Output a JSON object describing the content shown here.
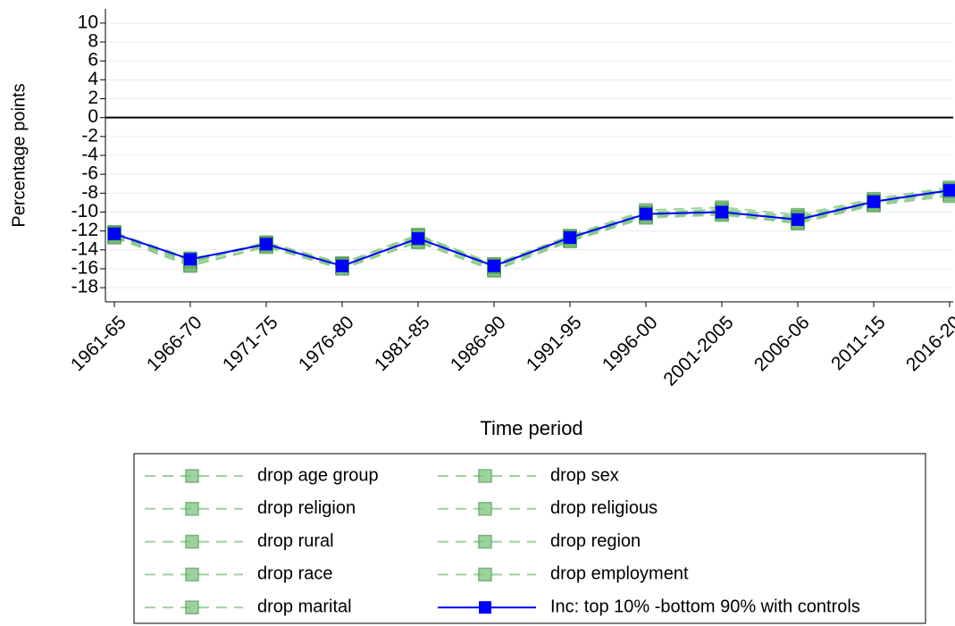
{
  "chart_data": {
    "type": "line",
    "ylabel": "Percentage points",
    "xlabel": "Time period",
    "categories": [
      "1961-65",
      "1966-70",
      "1971-75",
      "1976-80",
      "1981-85",
      "1986-90",
      "1991-95",
      "1996-00",
      "2001-2005",
      "2006-06",
      "2011-15",
      "2016-20"
    ],
    "ylim": [
      -19.5,
      11.5
    ],
    "yticks": [
      10,
      8,
      6,
      4,
      2,
      0,
      -2,
      -4,
      -6,
      -8,
      -10,
      -12,
      -14,
      -16,
      -18
    ],
    "grid": true,
    "hline": 0,
    "series": [
      {
        "name": "drop age group",
        "color": "#7cc47c",
        "line_style": "dashed",
        "values": [
          -12.5,
          -15.3,
          -13.3,
          -15.5,
          -12.9,
          -15.9,
          -12.9,
          -10.4,
          -10.1,
          -11.0,
          -9.1,
          -7.9
        ]
      },
      {
        "name": "drop sex",
        "color": "#7cc47c",
        "line_style": "dashed",
        "values": [
          -12.2,
          -15.0,
          -13.5,
          -15.8,
          -12.6,
          -15.6,
          -12.6,
          -10.0,
          -9.8,
          -10.6,
          -8.8,
          -7.6
        ]
      },
      {
        "name": "drop religion",
        "color": "#7cc47c",
        "line_style": "dashed",
        "values": [
          -12.1,
          -15.2,
          -13.2,
          -15.4,
          -12.4,
          -15.5,
          -12.5,
          -9.8,
          -9.5,
          -10.3,
          -8.6,
          -7.4
        ]
      },
      {
        "name": "drop religious",
        "color": "#7cc47c",
        "line_style": "dashed",
        "values": [
          -12.6,
          -15.6,
          -13.6,
          -15.9,
          -13.1,
          -16.1,
          -13.0,
          -10.5,
          -10.2,
          -11.1,
          -9.2,
          -8.1
        ]
      },
      {
        "name": "drop rural",
        "color": "#7cc47c",
        "line_style": "dashed",
        "values": [
          -12.3,
          -15.1,
          -13.4,
          -15.6,
          -12.8,
          -15.7,
          -12.7,
          -10.2,
          -10.0,
          -10.8,
          -8.9,
          -7.7
        ]
      },
      {
        "name": "drop region",
        "color": "#7cc47c",
        "line_style": "dashed",
        "values": [
          -12.4,
          -15.4,
          -13.3,
          -15.7,
          -12.7,
          -15.8,
          -12.8,
          -10.3,
          -9.9,
          -10.9,
          -9.0,
          -7.8
        ]
      },
      {
        "name": "drop race",
        "color": "#7cc47c",
        "line_style": "dashed",
        "values": [
          -12.2,
          -14.9,
          -13.5,
          -15.5,
          -12.5,
          -15.6,
          -12.6,
          -10.1,
          -9.7,
          -10.5,
          -8.8,
          -7.6
        ]
      },
      {
        "name": "drop employment",
        "color": "#7cc47c",
        "line_style": "dashed",
        "values": [
          -12.7,
          -15.7,
          -13.7,
          -16.0,
          -13.2,
          -16.2,
          -13.1,
          -10.6,
          -10.3,
          -11.2,
          -9.3,
          -8.3
        ]
      },
      {
        "name": "drop marital",
        "color": "#7cc47c",
        "line_style": "dashed",
        "values": [
          -12.3,
          -15.2,
          -13.4,
          -15.6,
          -12.8,
          -15.8,
          -12.7,
          -10.1,
          -10.0,
          -10.7,
          -8.9,
          -7.8
        ]
      },
      {
        "name": "Inc: top 10% -bottom 90% with controls",
        "color": "#0000ff",
        "line_style": "solid",
        "values": [
          -12.3,
          -15.0,
          -13.4,
          -15.7,
          -12.8,
          -15.7,
          -12.7,
          -10.2,
          -10.0,
          -10.8,
          -8.9,
          -7.7
        ]
      }
    ]
  }
}
